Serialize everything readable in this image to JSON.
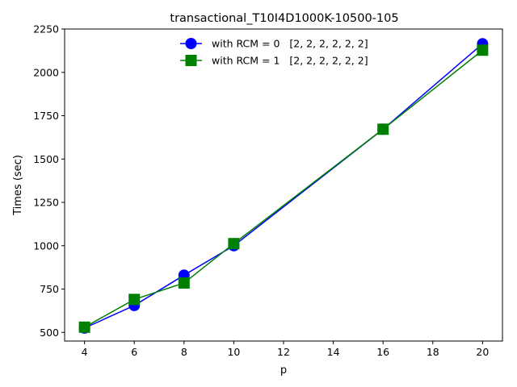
{
  "chart_data": {
    "type": "line",
    "title": "transactional_T10I4D1000K-10500-105",
    "xlabel": "p",
    "ylabel": "Times (sec)",
    "xlim": [
      3.2,
      20.8
    ],
    "ylim": [
      450,
      2250
    ],
    "xticks": [
      4,
      6,
      8,
      10,
      12,
      14,
      16,
      18,
      20
    ],
    "yticks": [
      500,
      750,
      1000,
      1250,
      1500,
      1750,
      2000,
      2250
    ],
    "grid": false,
    "legend_position": "top-center",
    "series": [
      {
        "name": "with RCM = 0   [2, 2, 2, 2, 2, 2]",
        "color": "#0000ff",
        "marker": "circle",
        "x": [
          4,
          6,
          8,
          10,
          16,
          20
        ],
        "y": [
          525,
          655,
          830,
          1000,
          1672,
          2165
        ]
      },
      {
        "name": "with RCM = 1   [2, 2, 2, 2, 2, 2]",
        "color": "#008000",
        "marker": "square",
        "x": [
          4,
          6,
          8,
          10,
          16,
          20
        ],
        "y": [
          530,
          690,
          785,
          1012,
          1672,
          2128
        ]
      }
    ]
  }
}
